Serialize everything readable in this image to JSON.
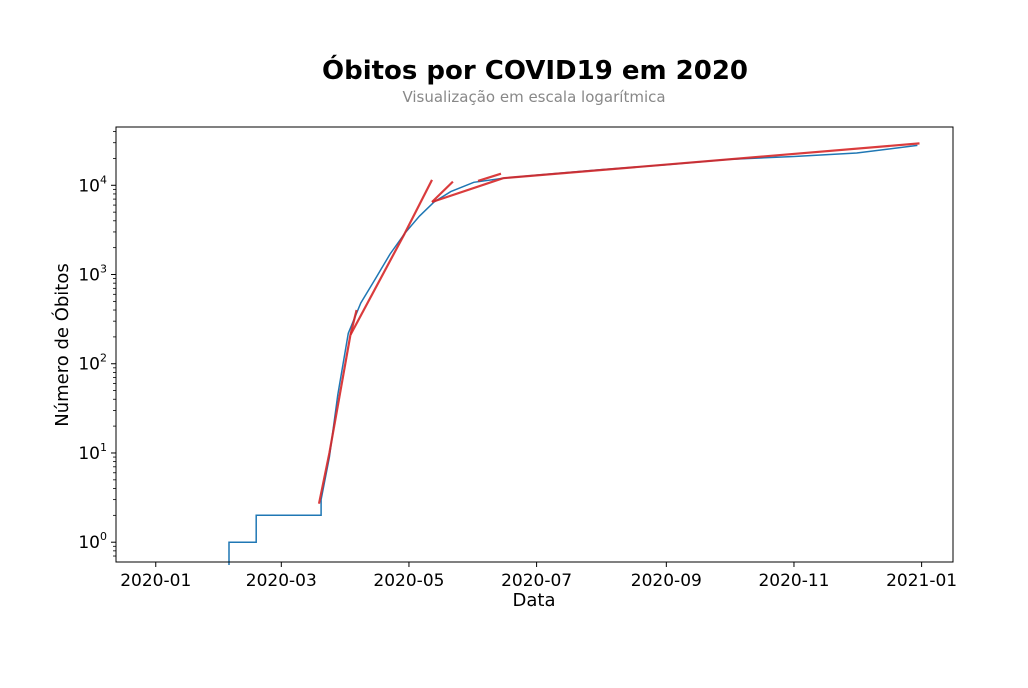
{
  "chart_data": {
    "type": "line",
    "title": "Óbitos por COVID19 em 2020",
    "subtitle": "Visualização em escala logarítmica",
    "xlabel": "Data",
    "ylabel": "Número de Óbitos",
    "yscale": "log",
    "xlim": [
      "2019-12-13",
      "2021-01-16"
    ],
    "ylim": [
      0.6,
      45000
    ],
    "grid": false,
    "x_ticks": [
      "2020-01-01",
      "2020-03-01",
      "2020-05-01",
      "2020-07-01",
      "2020-09-01",
      "2020-11-01",
      "2021-01-01"
    ],
    "x_tick_labels": [
      "2020-01",
      "2020-03",
      "2020-05",
      "2020-07",
      "2020-09",
      "2020-11",
      "2021-01"
    ],
    "y_ticks": [
      1,
      10,
      100,
      1000,
      10000
    ],
    "y_tick_labels": [
      {
        "base": "10",
        "exp": "0"
      },
      {
        "base": "10",
        "exp": "1"
      },
      {
        "base": "10",
        "exp": "2"
      },
      {
        "base": "10",
        "exp": "3"
      },
      {
        "base": "10",
        "exp": "4"
      }
    ],
    "series": [
      {
        "color": "#1f77b4",
        "step": true,
        "x": [
          "2020-02-05",
          "2020-02-17",
          "2020-02-18",
          "2020-03-19",
          "2020-03-20",
          "2020-03-24",
          "2020-03-28",
          "2020-04-02",
          "2020-04-08",
          "2020-04-15",
          "2020-04-22",
          "2020-04-29",
          "2020-05-06",
          "2020-05-13",
          "2020-05-21",
          "2020-06-01",
          "2020-06-15",
          "2020-07-01",
          "2020-08-01",
          "2020-09-01",
          "2020-10-01",
          "2020-11-01",
          "2020-12-01",
          "2020-12-30"
        ],
        "y": [
          1,
          1,
          2,
          2,
          3,
          9,
          45,
          220,
          480,
          900,
          1700,
          2900,
          4500,
          6500,
          8500,
          10800,
          12000,
          13000,
          15000,
          17000,
          19500,
          21000,
          23000,
          28000
        ]
      },
      {
        "color": "#d62728",
        "segments": [
          {
            "x": [
              "2020-03-19",
              "2020-03-24"
            ],
            "y": [
              2.7,
              10
            ]
          },
          {
            "x": [
              "2020-03-24",
              "2020-04-03"
            ],
            "y": [
              10,
              210
            ]
          },
          {
            "x": [
              "2020-04-03",
              "2020-04-06"
            ],
            "y": [
              210,
              400
            ]
          },
          {
            "x": [
              "2020-04-03",
              "2020-04-29"
            ],
            "y": [
              210,
              2900
            ]
          },
          {
            "x": [
              "2020-04-29",
              "2020-05-12"
            ],
            "y": [
              2900,
              11500
            ]
          },
          {
            "x": [
              "2020-05-12",
              "2020-05-22"
            ],
            "y": [
              6500,
              11000
            ]
          },
          {
            "x": [
              "2020-06-03",
              "2020-06-14"
            ],
            "y": [
              11200,
              13500
            ]
          },
          {
            "x": [
              "2020-05-12",
              "2020-06-15"
            ],
            "y": [
              6500,
              12000
            ]
          },
          {
            "x": [
              "2020-06-15",
              "2020-12-31"
            ],
            "y": [
              12000,
              29500
            ]
          }
        ]
      }
    ]
  }
}
